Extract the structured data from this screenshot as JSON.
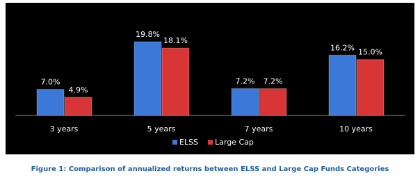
{
  "chart_data": {
    "type": "bar",
    "caption": "Figure 1: Comparison of annualized returns between ELSS and Large Cap Funds Categories",
    "categories": [
      "3 years",
      "5 years",
      "7 years",
      "10 years"
    ],
    "series": [
      {
        "name": "ELSS",
        "color": "#3b78d8",
        "values": [
          7.0,
          19.8,
          7.2,
          16.2
        ],
        "value_labels": [
          "7.0%",
          "19.8%",
          "7.2%",
          "16.2%"
        ]
      },
      {
        "name": "Large Cap",
        "color": "#d83636",
        "values": [
          4.9,
          18.1,
          7.2,
          15.0
        ],
        "value_labels": [
          "4.9%",
          "18.1%",
          "7.2%",
          "15.0%"
        ]
      }
    ],
    "legend": "bottom"
  }
}
